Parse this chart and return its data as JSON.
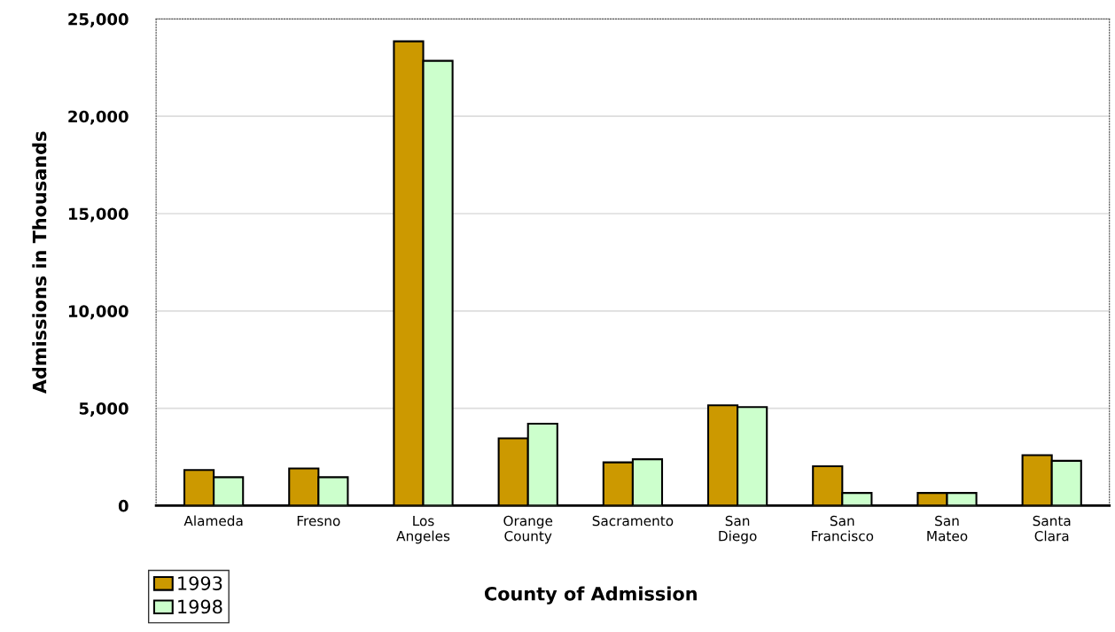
{
  "chart_data": {
    "type": "bar",
    "xlabel": "County of Admission",
    "ylabel": "Admissions in Thousands",
    "categories": [
      "Alameda",
      "Fresno",
      "Los\nAngeles",
      "Orange\nCounty",
      "Sacramento",
      "San\nDiego",
      "San\nFrancisco",
      "San\nMateo",
      "Santa\nClara"
    ],
    "series": [
      {
        "name": "1993",
        "color": "#cc9900",
        "values": [
          1830,
          1910,
          23850,
          3460,
          2220,
          5150,
          2020,
          650,
          2590
        ]
      },
      {
        "name": "1998",
        "color": "#ccffcc",
        "values": [
          1460,
          1460,
          22850,
          4210,
          2380,
          5060,
          650,
          650,
          2300
        ]
      }
    ],
    "ylim": [
      0,
      25000
    ],
    "yticks": [
      {
        "value": 0,
        "label": "0"
      },
      {
        "value": 5000,
        "label": "5,000"
      },
      {
        "value": 10000,
        "label": "10,000"
      },
      {
        "value": 15000,
        "label": "15,000"
      },
      {
        "value": 20000,
        "label": "20,000"
      },
      {
        "value": 25000,
        "label": "25,000"
      }
    ],
    "grid": "y",
    "legend": "bottom left"
  }
}
